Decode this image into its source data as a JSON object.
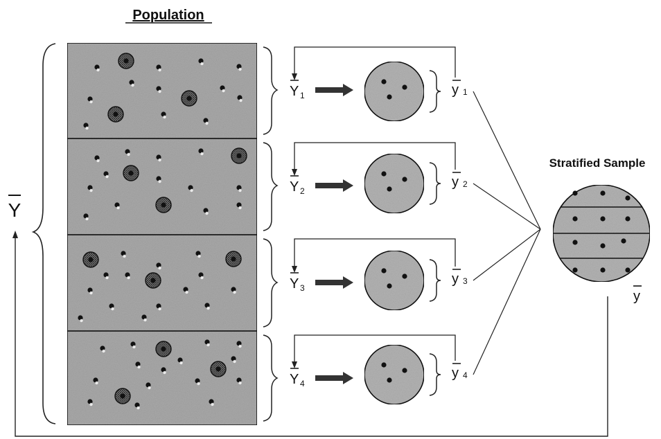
{
  "title": "Population",
  "sample_title": "Stratified Sample",
  "population_mean": "Y",
  "sample_mean": "y",
  "strata": [
    {
      "pop_label": "Y",
      "pop_sub": "1",
      "sample_label": "y",
      "sample_sub": "1"
    },
    {
      "pop_label": "Y",
      "pop_sub": "2",
      "sample_label": "y",
      "sample_sub": "2"
    },
    {
      "pop_label": "Y",
      "pop_sub": "3",
      "sample_label": "y",
      "sample_sub": "3"
    },
    {
      "pop_label": "Y",
      "pop_sub": "4",
      "sample_label": "y",
      "sample_sub": "4"
    }
  ],
  "colors": {
    "stratum_fill": "#a9a9a9",
    "circle_fill": "#b3b3b3",
    "dot": "#111111",
    "line": "#222222"
  }
}
